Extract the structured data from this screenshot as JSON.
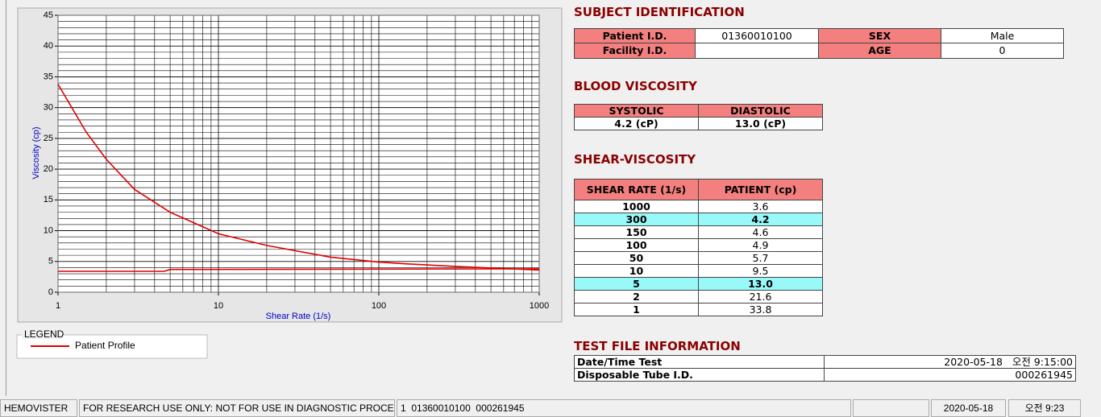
{
  "chart_data": {
    "type": "line",
    "x_label": "Shear Rate (1/s)",
    "y_label": "Viscosity (cp)",
    "x_log": true,
    "xlim": [
      1,
      1000
    ],
    "xticks": [
      1,
      10,
      100,
      1000
    ],
    "ylim": [
      0,
      45
    ],
    "yticks": [
      0,
      5,
      10,
      15,
      20,
      25,
      30,
      35,
      40,
      45
    ],
    "grid": true,
    "legend_title": "LEGEND",
    "series": [
      {
        "name": "Patient Profile",
        "color": "#e00000",
        "x": [
          1,
          1.5,
          2,
          3,
          5,
          10,
          20,
          50,
          100,
          150,
          300,
          1000
        ],
        "values": [
          33.8,
          26,
          21.6,
          16.7,
          13,
          9.5,
          7.6,
          5.7,
          4.9,
          4.6,
          4.2,
          3.6
        ]
      },
      {
        "color": "#e00000",
        "x": [
          1,
          4.6,
          5,
          1000
        ],
        "values": [
          3.4,
          3.4,
          3.7,
          3.8
        ]
      }
    ]
  },
  "subject_identification": {
    "title": "SUBJECT IDENTIFICATION",
    "patient_id": {
      "label": "Patient I.D.",
      "value": "01360010100"
    },
    "facility_id": {
      "label": "Facility I.D."
    },
    "sex": {
      "label": "SEX",
      "value": "Male"
    },
    "age": {
      "label": "AGE",
      "value": "0"
    }
  },
  "blood_viscosity": {
    "title": "BLOOD VISCOSITY",
    "headers": [
      "SYSTOLIC",
      "DIASTOLIC"
    ],
    "values": [
      "4.2 (cP)",
      "13.0 (cP)"
    ]
  },
  "shear_viscosity": {
    "title": "SHEAR-VISCOSITY",
    "headers": [
      "SHEAR RATE (1/s)",
      "PATIENT (cp)"
    ],
    "rows": [
      [
        "1000",
        "3.6"
      ],
      [
        "300",
        "4.2"
      ],
      [
        "150",
        "4.6"
      ],
      [
        "100",
        "4.9"
      ],
      [
        "50",
        "5.7"
      ],
      [
        "10",
        "9.5"
      ],
      [
        "5",
        "13.0"
      ],
      [
        "2",
        "21.6"
      ],
      [
        "1",
        "33.8"
      ]
    ],
    "highlighted_rows": [
      1,
      6
    ]
  },
  "test_file_information": {
    "title": "TEST FILE INFORMATION",
    "rows": [
      [
        "Date/Time Test",
        "2020-05-18   오전 9:15:00"
      ],
      [
        "Disposable Tube I.D.",
        "000261945"
      ]
    ]
  },
  "status_bar": [
    "HEMOVISTER",
    "FOR RESEARCH USE ONLY: NOT FOR USE IN DIAGNOSTIC PROCEDURES",
    "1  01360010100  000261945",
    "2020-05-18",
    "오전 9:23"
  ]
}
